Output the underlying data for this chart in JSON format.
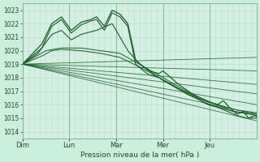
{
  "xlabel": "Pression niveau de la mer( hPa )",
  "bg_color": "#cceedd",
  "plot_bg_color": "#d4f0e4",
  "grid_color_minor": "#b8ddc8",
  "grid_color_major": "#88bb99",
  "line_color": "#1a5c28",
  "ylim": [
    1013.5,
    1023.5
  ],
  "yticks": [
    1014,
    1015,
    1016,
    1017,
    1018,
    1019,
    1020,
    1021,
    1022,
    1023
  ],
  "day_labels": [
    "Dim",
    "Lun",
    "Mar",
    "Mer",
    "Jeu"
  ],
  "day_positions": [
    0,
    24,
    48,
    72,
    96
  ],
  "total_hours": 120
}
